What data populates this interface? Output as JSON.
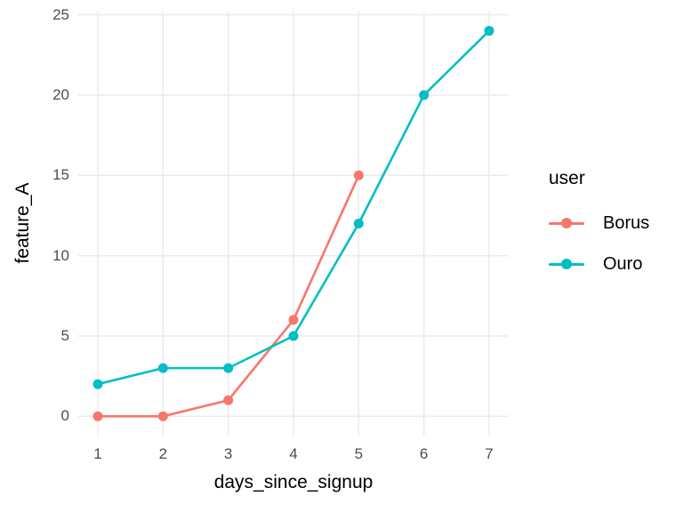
{
  "figure": {
    "background_color": "#FFFFFF",
    "grid_color": "#EBEBEB",
    "tick_label_color": "#4D4D4D",
    "axis_title_color": "#000000"
  },
  "chart_data": {
    "type": "line",
    "xlabel": "days_since_signup",
    "ylabel": "feature_A",
    "x_ticks": [
      1,
      2,
      3,
      4,
      5,
      6,
      7
    ],
    "y_ticks": [
      0,
      5,
      10,
      15,
      20,
      25
    ],
    "xlim": [
      0.7,
      7.3
    ],
    "ylim": [
      -1.2,
      25.2
    ],
    "grid": "major-only",
    "legend": {
      "title": "user",
      "position": "right",
      "entries": [
        "Borus",
        "Ouro"
      ]
    },
    "series": [
      {
        "name": "Borus",
        "color": "#F8766D",
        "x": [
          1,
          2,
          3,
          4,
          5
        ],
        "y": [
          0,
          0,
          1,
          6,
          15
        ]
      },
      {
        "name": "Ouro",
        "color": "#00BFC4",
        "x": [
          1,
          2,
          3,
          4,
          5,
          6,
          7
        ],
        "y": [
          2,
          3,
          3,
          5,
          12,
          20,
          24
        ]
      }
    ]
  }
}
